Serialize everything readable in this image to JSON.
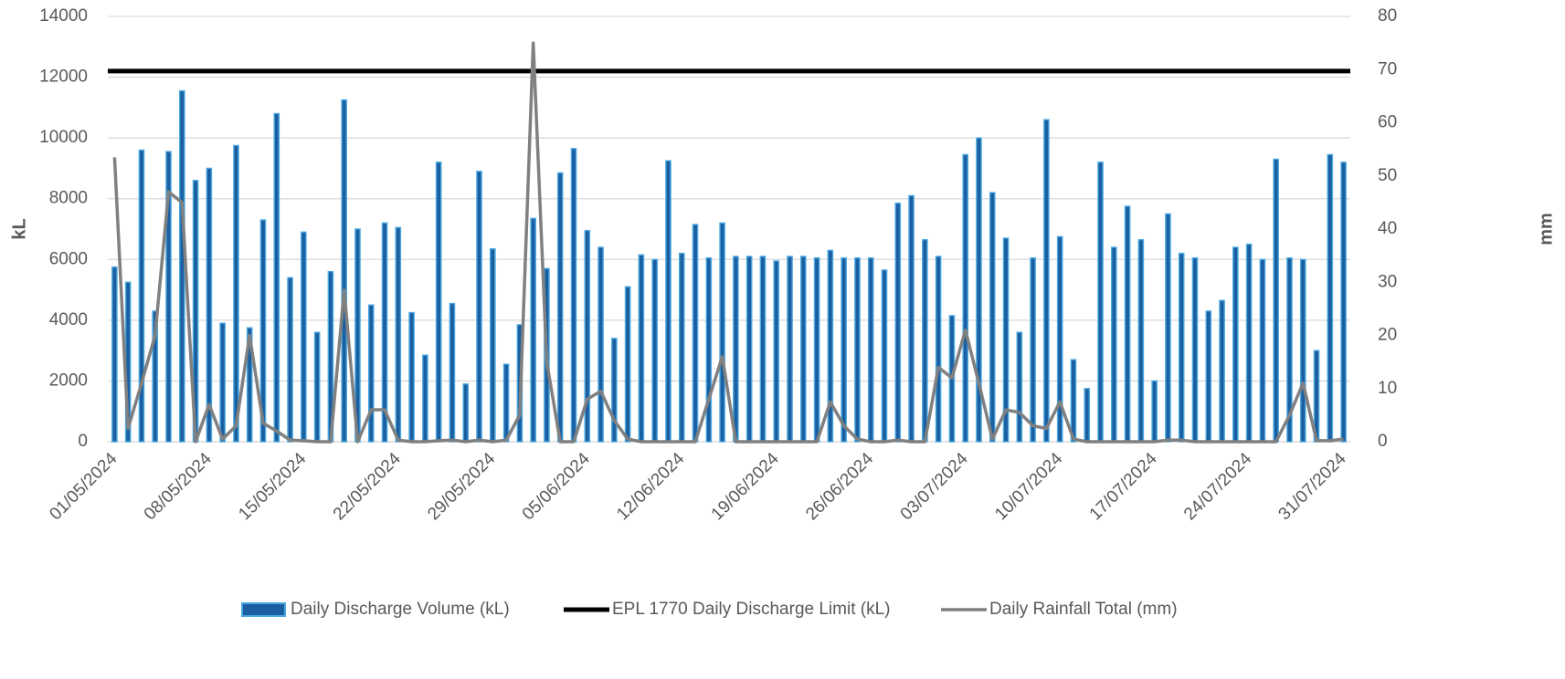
{
  "chart_data": {
    "type": "bar",
    "categories": [
      "01/05/2024",
      null,
      null,
      null,
      null,
      null,
      null,
      "08/05/2024",
      null,
      null,
      null,
      null,
      null,
      null,
      "15/05/2024",
      null,
      null,
      null,
      null,
      null,
      null,
      "22/05/2024",
      null,
      null,
      null,
      null,
      null,
      null,
      "29/05/2024",
      null,
      null,
      null,
      null,
      null,
      null,
      "05/06/2024",
      null,
      null,
      null,
      null,
      null,
      null,
      "12/06/2024",
      null,
      null,
      null,
      null,
      null,
      null,
      "19/06/2024",
      null,
      null,
      null,
      null,
      null,
      null,
      "26/06/2024",
      null,
      null,
      null,
      null,
      null,
      null,
      "03/07/2024",
      null,
      null,
      null,
      null,
      null,
      null,
      "10/07/2024",
      null,
      null,
      null,
      null,
      null,
      null,
      "17/07/2024",
      null,
      null,
      null,
      null,
      null,
      null,
      "24/07/2024",
      null,
      null,
      null,
      null,
      null,
      null,
      "31/07/2024"
    ],
    "series": [
      {
        "name": "Daily Discharge Volume (kL)",
        "type": "bar",
        "color": "#1b5fa0",
        "edge": "#4aa8e0",
        "values": [
          5750,
          5250,
          9600,
          4300,
          9550,
          11550,
          8600,
          9000,
          3900,
          9750,
          3750,
          7300,
          10800,
          5400,
          6900,
          3600,
          5600,
          11250,
          7000,
          4500,
          7200,
          7050,
          4250,
          2850,
          9200,
          4550,
          1900,
          8900,
          6350,
          2550,
          3850,
          7350,
          5700,
          8850,
          9650,
          6950,
          6400,
          3400,
          5100,
          6150,
          6000,
          9250,
          6200,
          7150,
          6050,
          7200,
          6100,
          6100,
          6100,
          5950,
          6100,
          6100,
          6050,
          6300,
          6050,
          6050,
          6050,
          5650,
          7850,
          8100,
          6650,
          6100,
          4150,
          9450,
          10000,
          8200,
          6700,
          3600,
          6050,
          10600,
          6750,
          2700,
          1750,
          9200,
          6400,
          7750,
          6650,
          2000,
          7500,
          6200,
          6050,
          4300,
          4650,
          6400,
          6500,
          6000,
          9300,
          6050,
          6000,
          3000,
          9450,
          9200
        ]
      },
      {
        "name": "EPL 1770 Daily Discharge Limit (kL)",
        "type": "hline",
        "color": "#000000",
        "value": 12200
      },
      {
        "name": "Daily Rainfall Total (mm)",
        "type": "line",
        "color": "#808080",
        "axis": "y2",
        "values": [
          53.5,
          2.5,
          11,
          20,
          47,
          45,
          0,
          7,
          0.5,
          3,
          20,
          3.5,
          2,
          0.3,
          0.2,
          0,
          0,
          28.5,
          0,
          6,
          6,
          0.3,
          0,
          0,
          0.2,
          0.3,
          0,
          0.3,
          0,
          0.3,
          5,
          75,
          15,
          0,
          0,
          8,
          9.5,
          4,
          0.5,
          0,
          0,
          0,
          0,
          0,
          8,
          16,
          0,
          0,
          0,
          0,
          0,
          0,
          0,
          7.5,
          3,
          0.5,
          0,
          0,
          0.3,
          0,
          0,
          14,
          12,
          21,
          11,
          0.5,
          6,
          5.5,
          3,
          2.5,
          7.5,
          0.5,
          0,
          0,
          0,
          0,
          0,
          0,
          0.3,
          0.3,
          0,
          0,
          0,
          0,
          0,
          0,
          0,
          5,
          11,
          0.2,
          0.2,
          0.5
        ]
      }
    ],
    "ylabel": "kL",
    "y2label": "mm",
    "ylim": [
      0,
      14000
    ],
    "yticks": [
      0,
      2000,
      4000,
      6000,
      8000,
      10000,
      12000,
      14000
    ],
    "y2lim": [
      0,
      80
    ],
    "y2ticks": [
      0,
      10,
      20,
      30,
      40,
      50,
      60,
      70,
      80
    ],
    "grid": true,
    "legend": "bottom"
  }
}
